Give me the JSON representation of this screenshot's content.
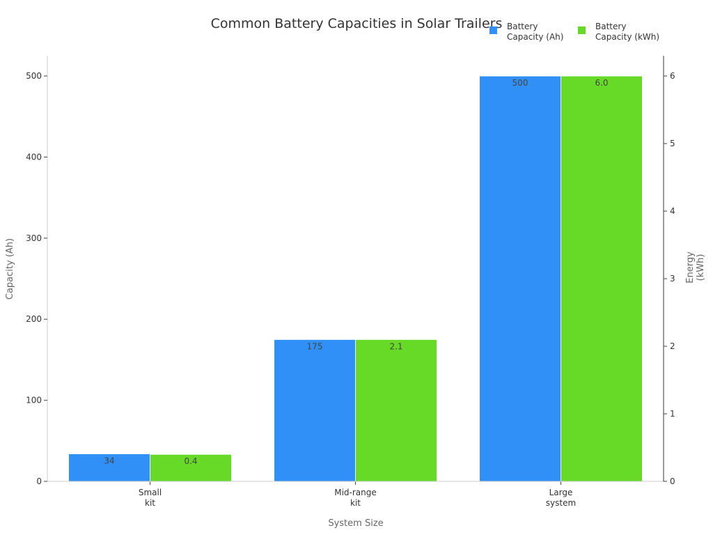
{
  "chart_data": {
    "type": "bar",
    "title": "Common Battery Capacities in Solar Trailers",
    "xlabel": "System Size",
    "ylabel": "Capacity (Ah)",
    "y2label": [
      "Energy",
      "(kWh)"
    ],
    "categories": [
      [
        "Small",
        "kit"
      ],
      [
        "Mid-range",
        "kit"
      ],
      [
        "Large",
        "system"
      ]
    ],
    "series": [
      {
        "name": [
          "Battery",
          "Capacity (Ah)"
        ],
        "axis": "left",
        "values": [
          34,
          175,
          500
        ],
        "labels": [
          "34",
          "175",
          "500"
        ],
        "color": "#3090f8"
      },
      {
        "name": [
          "Battery",
          "Capacity (kWh)"
        ],
        "axis": "right",
        "values": [
          0.4,
          2.1,
          6.0
        ],
        "labels": [
          "0.4",
          "2.1",
          "6.0"
        ],
        "color": "#66da26"
      }
    ],
    "ylim": [
      0,
      525
    ],
    "y2lim": [
      0,
      6.3
    ],
    "yticks": [
      0,
      100,
      200,
      300,
      400,
      500
    ],
    "y2ticks": [
      0,
      1,
      2,
      3,
      4,
      5,
      6
    ],
    "grid": false,
    "legend": "top-right"
  }
}
